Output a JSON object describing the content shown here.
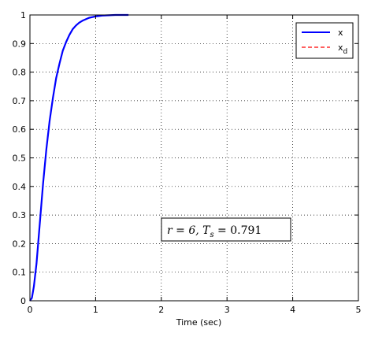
{
  "chart_data": {
    "type": "line",
    "xlabel": "Time (sec)",
    "ylabel": "",
    "xlim": [
      0,
      5
    ],
    "ylim": [
      0,
      1
    ],
    "xticks": [
      "0",
      "1",
      "2",
      "3",
      "4",
      "5"
    ],
    "yticks": [
      "0",
      "0.1",
      "0.2",
      "0.3",
      "0.4",
      "0.5",
      "0.6",
      "0.7",
      "0.8",
      "0.9",
      "1"
    ],
    "grid": true,
    "legend_position": "top-right",
    "annotation": "r = 6, T_s = 0.791",
    "series": [
      {
        "name": "x",
        "style": "solid",
        "color": "#0000ff",
        "x": [
          0,
          0.03,
          0.06,
          0.1,
          0.15,
          0.2,
          0.25,
          0.3,
          0.35,
          0.4,
          0.45,
          0.5,
          0.55,
          0.6,
          0.65,
          0.7,
          0.75,
          0.8,
          0.9,
          1.0,
          1.1,
          1.2,
          1.3,
          1.4,
          1.5
        ],
        "y": [
          0,
          0.01,
          0.05,
          0.13,
          0.27,
          0.41,
          0.53,
          0.63,
          0.71,
          0.78,
          0.83,
          0.875,
          0.905,
          0.93,
          0.95,
          0.963,
          0.973,
          0.98,
          0.99,
          0.995,
          0.998,
          0.999,
          1.0,
          1.0,
          1.0
        ]
      },
      {
        "name": "x_d",
        "style": "dashed",
        "color": "#ff0000",
        "x": [
          0,
          0.03,
          0.06,
          0.1,
          0.15,
          0.2,
          0.25,
          0.3,
          0.35,
          0.4,
          0.45,
          0.5,
          0.55,
          0.6,
          0.65,
          0.7,
          0.75,
          0.8,
          0.9,
          1.0,
          1.1,
          1.2,
          1.3,
          1.4,
          1.5
        ],
        "y": [
          0,
          0.01,
          0.05,
          0.13,
          0.27,
          0.41,
          0.53,
          0.63,
          0.71,
          0.78,
          0.83,
          0.875,
          0.905,
          0.93,
          0.95,
          0.963,
          0.973,
          0.98,
          0.99,
          0.995,
          0.998,
          0.999,
          1.0,
          1.0,
          1.0
        ]
      }
    ]
  }
}
